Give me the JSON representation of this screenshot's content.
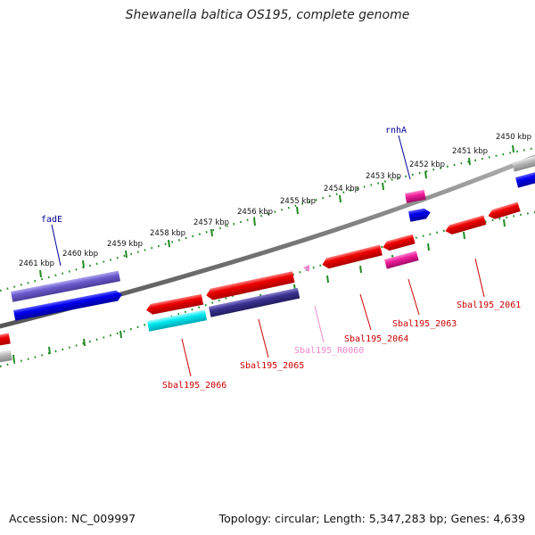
{
  "title": "Shewanella baltica OS195, complete genome",
  "footer": {
    "accession": "Accession: NC_009997",
    "summary": "Topology: circular; Length: 5,347,283 bp; Genes: 4,639"
  },
  "scale_labels": [
    "2450 kbp",
    "2451 kbp",
    "2452 kbp",
    "2453 kbp",
    "2454 kbp",
    "2455 kbp",
    "2456 kbp",
    "2457 kbp",
    "2458 kbp",
    "2459 kbp",
    "2460 kbp",
    "2461 kbp"
  ],
  "gene_labels": {
    "rnhA": "rnhA",
    "fadE": "fadE",
    "sbal2061": "Sbal195_2061",
    "sbal2063": "Sbal195_2063",
    "sbal2064": "Sbal195_2064",
    "sbalR0060": "Sbal195_R0060",
    "sbal2065": "Sbal195_2065",
    "sbal2066": "Sbal195_2066"
  },
  "colors": {
    "cds_red": "#ee0000",
    "cds_blue": "#0000ee",
    "cds_magenta": "#ee1c9a",
    "cds_cyan": "#00e0ee",
    "cds_navy": "#3a3090",
    "cds_violet": "#6a5acd",
    "cds_gray": "#b8b8b8",
    "rna_pink": "#ee88cc",
    "label_red": "#cc0000",
    "label_blue": "#000099",
    "label_pink": "#ee88cc",
    "tick_green": "#228b22",
    "backbone": "#777777"
  }
}
